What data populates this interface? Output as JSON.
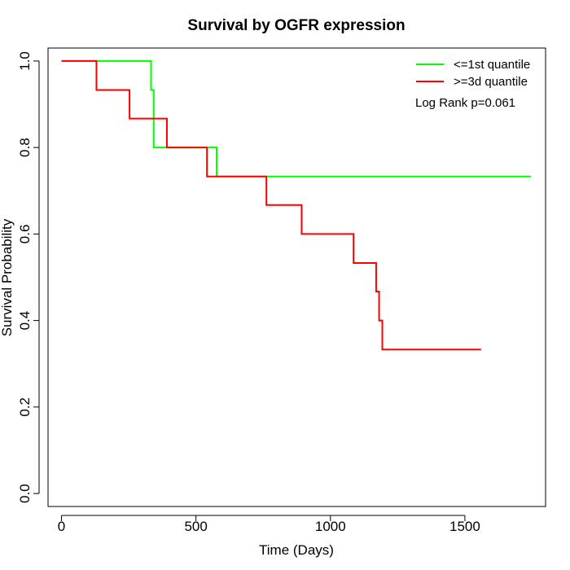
{
  "chart_data": {
    "type": "line",
    "title": "Survival by OGFR expression",
    "xlabel": "Time (Days)",
    "ylabel": "Survival Probability",
    "xlim": [
      -50,
      1800
    ],
    "ylim": [
      -0.03,
      1.03
    ],
    "xticks": [
      0,
      500,
      1000,
      1500
    ],
    "xtick_labels": [
      "0",
      "500",
      "1000",
      "1500"
    ],
    "yticks": [
      0.0,
      0.2,
      0.4,
      0.6,
      0.8,
      1.0
    ],
    "ytick_labels": [
      "0.0",
      "0.2",
      "0.4",
      "0.6",
      "0.8",
      "1.0"
    ],
    "grid": false,
    "legend_position": "top-right",
    "annotation": "Log Rank p=0.061",
    "series": [
      {
        "name": "<=1st quantile",
        "color": "#00ff00",
        "step": true,
        "x": [
          0,
          328,
          333,
          343,
          573,
          577,
          1745
        ],
        "y": [
          1.0,
          1.0,
          0.933,
          0.8,
          0.8,
          0.733,
          0.733
        ]
      },
      {
        "name": ">=3d quantile",
        "color": "#ff0000",
        "step": true,
        "x": [
          0,
          130,
          253,
          392,
          541,
          762,
          893,
          1086,
          1170,
          1181,
          1193,
          1560
        ],
        "y": [
          1.0,
          0.933,
          0.867,
          0.8,
          0.733,
          0.667,
          0.6,
          0.533,
          0.467,
          0.4,
          0.333,
          0.333
        ]
      }
    ]
  }
}
